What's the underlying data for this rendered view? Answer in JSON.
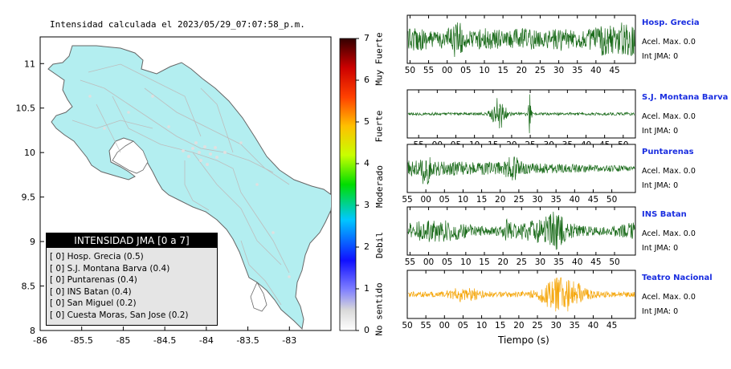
{
  "title": "Intensidad calculada el 2023/05/29_07:07:58_p.m.",
  "map": {
    "xlim": [
      -86,
      -82.5
    ],
    "ylim": [
      8,
      11.3
    ],
    "x_ticks": [
      "-86",
      "-85.5",
      "-85",
      "-84.5",
      "-84",
      "-83.5",
      "-83"
    ],
    "y_ticks": [
      "8",
      "8.5",
      "9",
      "9.5",
      "10",
      "10.5",
      "11"
    ],
    "land_color": "#b3eef0",
    "border_color": "#555555"
  },
  "legend": {
    "title": "INTENSIDAD JMA [0 a 7]",
    "items": [
      {
        "intensity": "[ 0]",
        "name": "Hosp. Grecia (0.5)"
      },
      {
        "intensity": "[ 0]",
        "name": "S.J. Montana Barva (0.4)"
      },
      {
        "intensity": "[ 0]",
        "name": "Puntarenas (0.4)"
      },
      {
        "intensity": "[ 0]",
        "name": "INS Batan (0.4)"
      },
      {
        "intensity": "[ 0]",
        "name": "San Miguel (0.2)"
      },
      {
        "intensity": "[ 0]",
        "name": "Cuesta Moras, San Jose (0.2)"
      }
    ]
  },
  "colorbar": {
    "range": [
      0,
      7
    ],
    "ticks": [
      "0",
      "1",
      "2",
      "3",
      "4",
      "5",
      "6",
      "7"
    ],
    "labels": [
      "No sentido",
      "Debil",
      "Moderado",
      "Fuerte",
      "Muy Fuerte"
    ]
  },
  "chart_data": {
    "type": "line",
    "xlabel": "Tiempo (s)",
    "stations": [
      {
        "name": "Hosp. Grecia",
        "acel": "Acel. Max. 0.0",
        "int": "Int JMA: 0",
        "color": "#1a6b1a",
        "ticks": [
          "50",
          "55",
          "00",
          "05",
          "10",
          "15",
          "20",
          "25",
          "30",
          "35",
          "40",
          "45"
        ],
        "tick_start": 0.012,
        "tick_step": 0.0815
      },
      {
        "name": "S.J. Montana Barva",
        "acel": "Acel. Max. 0.0",
        "int": "Int JMA: 0",
        "color": "#1a6b1a",
        "ticks": [
          "55",
          "00",
          "05",
          "10",
          "15",
          "20",
          "25",
          "30",
          "35",
          "40",
          "45",
          "50"
        ],
        "tick_start": 0.05,
        "tick_step": 0.0815
      },
      {
        "name": "Puntarenas",
        "acel": "Acel. Max. 0.0",
        "int": "Int JMA: 0",
        "color": "#1a6b1a",
        "ticks": [
          "55",
          "00",
          "05",
          "10",
          "15",
          "20",
          "25",
          "30",
          "35",
          "40",
          "45",
          "50"
        ],
        "tick_start": 0.0,
        "tick_step": 0.0815
      },
      {
        "name": "INS Batan",
        "acel": "Acel. Max. 0.0",
        "int": "Int JMA: 0",
        "color": "#1a6b1a",
        "ticks": [
          "55",
          "00",
          "05",
          "10",
          "15",
          "20",
          "25",
          "30",
          "35",
          "40",
          "45",
          "50"
        ],
        "tick_start": 0.012,
        "tick_step": 0.0815
      },
      {
        "name": "Teatro Nacional",
        "acel": "Acel. Max. 0.0",
        "int": "Int JMA: 0",
        "color": "#f5a60a",
        "ticks": [
          "50",
          "55",
          "00",
          "05",
          "10",
          "15",
          "20",
          "25",
          "30",
          "35",
          "40",
          "45"
        ],
        "tick_start": 0.0,
        "tick_step": 0.0815
      }
    ]
  }
}
